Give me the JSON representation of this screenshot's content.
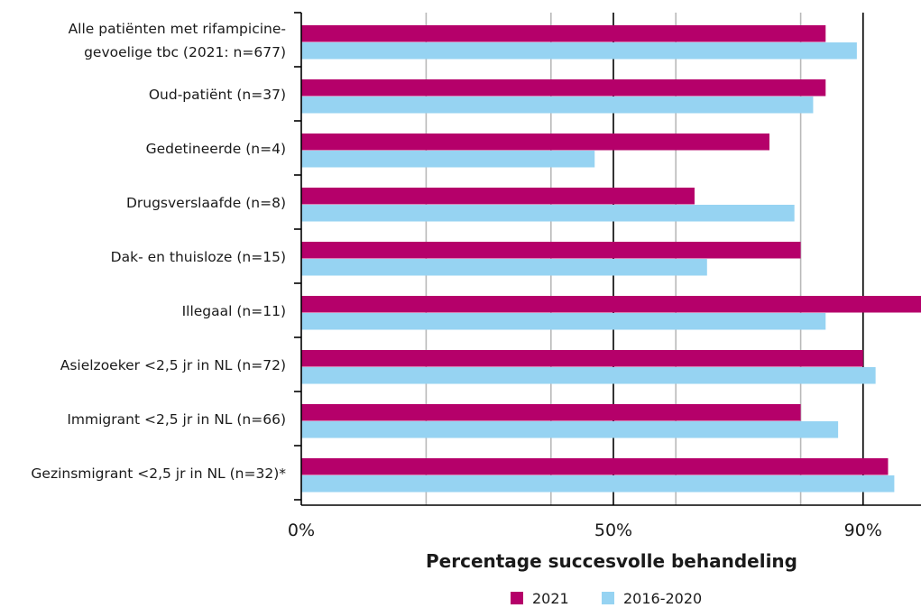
{
  "chart_data": {
    "type": "bar",
    "orientation": "horizontal",
    "categories": [
      [
        "Alle patiënten met rifampicine-",
        "gevoelige tbc (2021: n=677)"
      ],
      [
        "Oud-patiënt (n=37)"
      ],
      [
        "Gedetineerde (n=4)"
      ],
      [
        "Drugsverslaafde (n=8)"
      ],
      [
        "Dak- en thuisloze (n=15)"
      ],
      [
        "Illegaal (n=11)"
      ],
      [
        "Asielzoeker <2,5 jr in NL (n=72)"
      ],
      [
        "Immigrant <2,5 jr in NL (n=66)"
      ],
      [
        "Gezinsmigrant <2,5 jr in NL (n=32)*"
      ]
    ],
    "series": [
      {
        "name": "2021",
        "color": "#b5006a",
        "values": [
          84,
          84,
          75,
          63,
          80,
          100,
          90,
          80,
          94
        ]
      },
      {
        "name": "2016-2020",
        "color": "#96d3f2",
        "values": [
          89,
          82,
          47,
          79,
          65,
          84,
          92,
          86,
          95
        ]
      }
    ],
    "xlabel": "Percentage succesvolle behandeling",
    "xlim": [
      0,
      100
    ],
    "major_ticks": [
      {
        "value": 0,
        "label": "0%"
      },
      {
        "value": 50,
        "label": "50%"
      },
      {
        "value": 90,
        "label": "90%"
      }
    ],
    "minor_gridlines": [
      20,
      40,
      60,
      80
    ],
    "legend_position": "bottom-center"
  }
}
